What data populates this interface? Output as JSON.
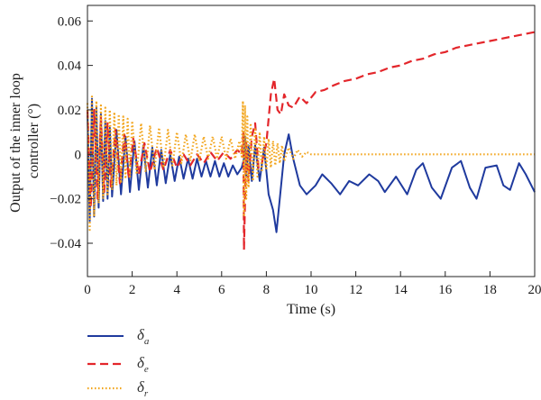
{
  "chart_data": {
    "type": "line",
    "title": "",
    "xlabel": "Time (s)",
    "ylabel": "Output of the inner loop controller (°)",
    "ylabel_lines": [
      "Output of the inner loop",
      "controller (°)"
    ],
    "xlim": [
      0,
      20
    ],
    "ylim": [
      -0.055,
      0.067
    ],
    "x_ticks": [
      0,
      2,
      4,
      6,
      8,
      10,
      12,
      14,
      16,
      18,
      20
    ],
    "x_tick_labels": [
      "0",
      "2",
      "4",
      "6",
      "8",
      "10",
      "12",
      "14",
      "16",
      "18",
      "20"
    ],
    "y_ticks": [
      -0.04,
      -0.02,
      0,
      0.02,
      0.04,
      0.06
    ],
    "y_tick_labels": [
      "−0.04",
      "−0.02",
      "0",
      "0.02",
      "0.04",
      "0.06"
    ],
    "grid": false,
    "legend_position": "bottom-left",
    "series": [
      {
        "name": "a",
        "legend_symbol": "δ",
        "legend_subscript": "a",
        "color": "#1f3a9e",
        "style": "solid",
        "points": [
          [
            0,
            0.02
          ],
          [
            0.1,
            -0.03
          ],
          [
            0.2,
            0.025
          ],
          [
            0.3,
            -0.028
          ],
          [
            0.4,
            0.021
          ],
          [
            0.5,
            -0.024
          ],
          [
            0.6,
            0.018
          ],
          [
            0.7,
            -0.021
          ],
          [
            0.8,
            0.015
          ],
          [
            0.9,
            -0.02
          ],
          [
            1.0,
            0.012
          ],
          [
            1.1,
            -0.019
          ],
          [
            1.3,
            0.011
          ],
          [
            1.5,
            -0.018
          ],
          [
            1.7,
            0.008
          ],
          [
            1.9,
            -0.017
          ],
          [
            2.1,
            0.006
          ],
          [
            2.3,
            -0.016
          ],
          [
            2.5,
            0.004
          ],
          [
            2.7,
            -0.015
          ],
          [
            2.9,
            0.003
          ],
          [
            3.1,
            -0.014
          ],
          [
            3.3,
            0.002
          ],
          [
            3.5,
            -0.013
          ],
          [
            3.7,
            0.0
          ],
          [
            3.9,
            -0.012
          ],
          [
            4.1,
            -0.001
          ],
          [
            4.3,
            -0.011
          ],
          [
            4.5,
            -0.002
          ],
          [
            4.7,
            -0.011
          ],
          [
            4.9,
            -0.002
          ],
          [
            5.1,
            -0.01
          ],
          [
            5.3,
            -0.003
          ],
          [
            5.5,
            -0.01
          ],
          [
            5.7,
            -0.003
          ],
          [
            5.9,
            -0.01
          ],
          [
            6.1,
            -0.004
          ],
          [
            6.3,
            -0.01
          ],
          [
            6.5,
            -0.005
          ],
          [
            6.7,
            -0.009
          ],
          [
            6.9,
            -0.006
          ],
          [
            7.0,
            -0.002
          ],
          [
            7.05,
            0.008
          ],
          [
            7.1,
            -0.01
          ],
          [
            7.2,
            0.004
          ],
          [
            7.35,
            -0.012
          ],
          [
            7.5,
            0.004
          ],
          [
            7.7,
            -0.012
          ],
          [
            7.9,
            0.003
          ],
          [
            8.1,
            -0.018
          ],
          [
            8.3,
            -0.025
          ],
          [
            8.45,
            -0.035
          ],
          [
            8.6,
            -0.02
          ],
          [
            8.8,
            0.0
          ],
          [
            9.0,
            0.009
          ],
          [
            9.2,
            -0.002
          ],
          [
            9.5,
            -0.014
          ],
          [
            9.8,
            -0.018
          ],
          [
            10.2,
            -0.014
          ],
          [
            10.5,
            -0.009
          ],
          [
            10.9,
            -0.013
          ],
          [
            11.3,
            -0.018
          ],
          [
            11.7,
            -0.012
          ],
          [
            12.1,
            -0.014
          ],
          [
            12.6,
            -0.009
          ],
          [
            13.0,
            -0.012
          ],
          [
            13.3,
            -0.017
          ],
          [
            13.8,
            -0.01
          ],
          [
            14.3,
            -0.018
          ],
          [
            14.7,
            -0.007
          ],
          [
            15.0,
            -0.004
          ],
          [
            15.4,
            -0.015
          ],
          [
            15.8,
            -0.02
          ],
          [
            16.3,
            -0.006
          ],
          [
            16.7,
            -0.003
          ],
          [
            17.1,
            -0.015
          ],
          [
            17.4,
            -0.02
          ],
          [
            17.8,
            -0.006
          ],
          [
            18.3,
            -0.005
          ],
          [
            18.6,
            -0.014
          ],
          [
            18.9,
            -0.016
          ],
          [
            19.3,
            -0.004
          ],
          [
            19.6,
            -0.009
          ],
          [
            20.0,
            -0.017
          ]
        ]
      },
      {
        "name": "e",
        "legend_symbol": "δ",
        "legend_subscript": "e",
        "color": "#e3262b",
        "style": "dashed",
        "points": [
          [
            0,
            0.02
          ],
          [
            0.15,
            -0.024
          ],
          [
            0.3,
            0.02
          ],
          [
            0.45,
            -0.02
          ],
          [
            0.6,
            0.017
          ],
          [
            0.75,
            -0.017
          ],
          [
            0.9,
            0.014
          ],
          [
            1.05,
            -0.015
          ],
          [
            1.25,
            0.011
          ],
          [
            1.45,
            -0.013
          ],
          [
            1.65,
            0.009
          ],
          [
            1.85,
            -0.011
          ],
          [
            2.05,
            0.007
          ],
          [
            2.3,
            -0.009
          ],
          [
            2.55,
            0.005
          ],
          [
            2.8,
            -0.008
          ],
          [
            3.1,
            0.003
          ],
          [
            3.4,
            -0.007
          ],
          [
            3.7,
            0.002
          ],
          [
            4.0,
            -0.006
          ],
          [
            4.3,
            0.0
          ],
          [
            4.6,
            -0.005
          ],
          [
            4.9,
            0.0
          ],
          [
            5.2,
            -0.004
          ],
          [
            5.5,
            0.001
          ],
          [
            5.8,
            -0.003
          ],
          [
            6.1,
            0.001
          ],
          [
            6.4,
            -0.002
          ],
          [
            6.7,
            0.002
          ],
          [
            6.9,
            0.0
          ],
          [
            6.97,
            0.01
          ],
          [
            7.0,
            -0.043
          ],
          [
            7.1,
            0.005
          ],
          [
            7.2,
            -0.012
          ],
          [
            7.35,
            0.008
          ],
          [
            7.5,
            0.014
          ],
          [
            7.65,
            -0.006
          ],
          [
            7.8,
            -0.004
          ],
          [
            8.0,
            0.005
          ],
          [
            8.2,
            0.027
          ],
          [
            8.35,
            0.034
          ],
          [
            8.5,
            0.02
          ],
          [
            8.65,
            0.018
          ],
          [
            8.8,
            0.027
          ],
          [
            9.0,
            0.022
          ],
          [
            9.2,
            0.021
          ],
          [
            9.5,
            0.026
          ],
          [
            9.8,
            0.023
          ],
          [
            10.2,
            0.028
          ],
          [
            10.6,
            0.029
          ],
          [
            11.0,
            0.031
          ],
          [
            11.5,
            0.033
          ],
          [
            12.0,
            0.034
          ],
          [
            12.5,
            0.036
          ],
          [
            13.0,
            0.037
          ],
          [
            13.5,
            0.039
          ],
          [
            14.0,
            0.04
          ],
          [
            14.5,
            0.042
          ],
          [
            15.0,
            0.043
          ],
          [
            15.5,
            0.045
          ],
          [
            16.0,
            0.046
          ],
          [
            16.5,
            0.048
          ],
          [
            17.0,
            0.049
          ],
          [
            17.5,
            0.05
          ],
          [
            18.0,
            0.051
          ],
          [
            18.5,
            0.052
          ],
          [
            19.0,
            0.053
          ],
          [
            19.5,
            0.054
          ],
          [
            20.0,
            0.055
          ]
        ]
      },
      {
        "name": "r",
        "legend_symbol": "δ",
        "legend_subscript": "r",
        "color": "#f2a41a",
        "style": "dotted",
        "points": [
          [
            0,
            0.023
          ],
          [
            0.1,
            -0.034
          ],
          [
            0.2,
            0.026
          ],
          [
            0.3,
            -0.028
          ],
          [
            0.4,
            0.024
          ],
          [
            0.5,
            -0.022
          ],
          [
            0.6,
            0.022
          ],
          [
            0.7,
            -0.02
          ],
          [
            0.8,
            0.021
          ],
          [
            0.9,
            -0.018
          ],
          [
            1.0,
            0.02
          ],
          [
            1.1,
            -0.016
          ],
          [
            1.2,
            0.019
          ],
          [
            1.3,
            -0.014
          ],
          [
            1.4,
            0.018
          ],
          [
            1.5,
            -0.013
          ],
          [
            1.6,
            0.017
          ],
          [
            1.7,
            -0.011
          ],
          [
            1.8,
            0.016
          ],
          [
            1.9,
            -0.01
          ],
          [
            2.0,
            0.015
          ],
          [
            2.2,
            -0.009
          ],
          [
            2.4,
            0.014
          ],
          [
            2.6,
            -0.008
          ],
          [
            2.8,
            0.013
          ],
          [
            3.0,
            -0.007
          ],
          [
            3.2,
            0.012
          ],
          [
            3.4,
            -0.006
          ],
          [
            3.6,
            0.011
          ],
          [
            3.8,
            -0.005
          ],
          [
            4.0,
            0.01
          ],
          [
            4.2,
            -0.004
          ],
          [
            4.4,
            0.009
          ],
          [
            4.6,
            -0.003
          ],
          [
            4.8,
            0.009
          ],
          [
            5.0,
            -0.003
          ],
          [
            5.2,
            0.008
          ],
          [
            5.4,
            -0.002
          ],
          [
            5.6,
            0.008
          ],
          [
            5.8,
            -0.002
          ],
          [
            6.0,
            0.008
          ],
          [
            6.2,
            -0.002
          ],
          [
            6.4,
            0.007
          ],
          [
            6.6,
            -0.002
          ],
          [
            6.8,
            0.006
          ],
          [
            6.9,
            -0.001
          ],
          [
            6.95,
            0.024
          ],
          [
            7.0,
            -0.028
          ],
          [
            7.05,
            0.022
          ],
          [
            7.1,
            -0.02
          ],
          [
            7.15,
            0.017
          ],
          [
            7.2,
            -0.015
          ],
          [
            7.3,
            0.014
          ],
          [
            7.4,
            -0.012
          ],
          [
            7.5,
            0.012
          ],
          [
            7.6,
            -0.01
          ],
          [
            7.7,
            0.01
          ],
          [
            7.8,
            -0.008
          ],
          [
            7.9,
            0.008
          ],
          [
            8.0,
            -0.007
          ],
          [
            8.1,
            0.007
          ],
          [
            8.2,
            -0.006
          ],
          [
            8.3,
            0.006
          ],
          [
            8.4,
            -0.005
          ],
          [
            8.5,
            0.005
          ],
          [
            8.6,
            -0.004
          ],
          [
            8.7,
            0.004
          ],
          [
            8.8,
            -0.003
          ],
          [
            9.0,
            0.003
          ],
          [
            9.2,
            -0.002
          ],
          [
            9.4,
            0.002
          ],
          [
            9.6,
            -0.001
          ],
          [
            9.8,
            0.001
          ],
          [
            10.0,
            0.0
          ],
          [
            11.0,
            0.0
          ],
          [
            20.0,
            0.0
          ]
        ]
      }
    ]
  }
}
